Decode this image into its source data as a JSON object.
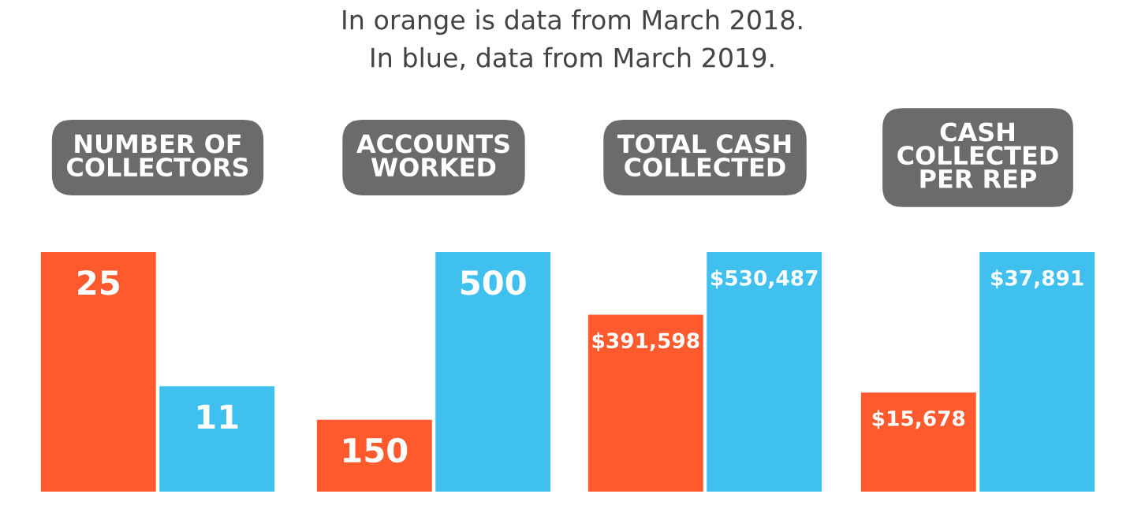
{
  "chart_data": [
    {
      "type": "bar",
      "title": "NUMBER OF\nCOLLECTORS",
      "annotations": [
        "In orange is data from March 2018.",
        "In blue, data from March 2019."
      ],
      "categories": [
        null
      ],
      "data_labels": true,
      "series": [
        {
          "color": "#ff5a2e",
          "values": [
            25
          ]
        },
        {
          "color": "#3fc0ef",
          "values": [
            11
          ]
        }
      ]
    },
    {
      "type": "bar",
      "title": "ACCOUNTS\nWORKED",
      "categories": [
        null
      ],
      "data_labels": true,
      "series": [
        {
          "color": "#ff5a2e",
          "values": [
            150
          ]
        },
        {
          "color": "#3fc0ef",
          "values": [
            500
          ]
        }
      ]
    },
    {
      "type": "bar",
      "title": "TOTAL CASH\nCOLLECTED",
      "categories": [
        null
      ],
      "series": [
        {
          "color": "#ff5a2e",
          "values": [
            391598
          ],
          "value_labels": [
            "$391,598"
          ]
        },
        {
          "color": "#3fc0ef",
          "values": [
            530487
          ],
          "value_labels": [
            "$530,487"
          ]
        }
      ]
    },
    {
      "type": "bar",
      "title": "CASH\nCOLLECTED\nPER REP",
      "categories": [
        null
      ],
      "series": [
        {
          "color": "#ff5a2e",
          "values": [
            15678
          ],
          "value_labels": [
            "$15,678"
          ]
        },
        {
          "color": "#3fc0ef",
          "values": [
            37891
          ],
          "value_labels": [
            "$37,891"
          ]
        }
      ]
    }
  ]
}
